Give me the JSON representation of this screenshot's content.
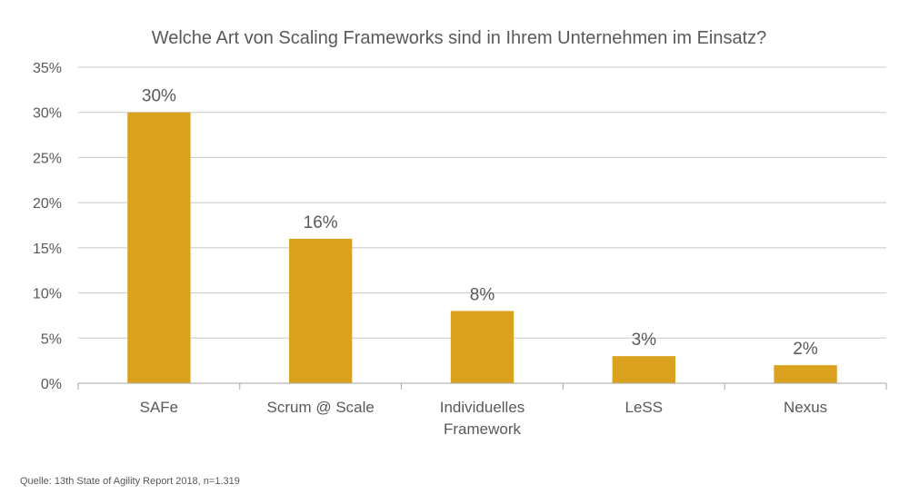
{
  "chart_data": {
    "type": "bar",
    "title": "Welche Art von Scaling Frameworks sind in Ihrem Unternehmen im Einsatz?",
    "categories": [
      [
        "SAFe"
      ],
      [
        "Scrum @ Scale"
      ],
      [
        "Individuelles",
        "Framework"
      ],
      [
        "LeSS"
      ],
      [
        "Nexus"
      ]
    ],
    "values": [
      30,
      16,
      8,
      3,
      2
    ],
    "data_labels": [
      "30%",
      "16%",
      "8%",
      "3%",
      "2%"
    ],
    "ylim": [
      0,
      35
    ],
    "yticks": [
      0,
      5,
      10,
      15,
      20,
      25,
      30,
      35
    ],
    "ytick_labels": [
      "0%",
      "5%",
      "10%",
      "15%",
      "20%",
      "25%",
      "30%",
      "35%"
    ],
    "xlabel": "",
    "ylabel": "",
    "grid": true,
    "legend": "none",
    "bar_color": "#DAA11F",
    "grid_color": "#C8C8C8",
    "text_color": "#595959"
  },
  "footer": {
    "source": "Quelle:  13th State of Agility Report 2018, n=1.319"
  }
}
